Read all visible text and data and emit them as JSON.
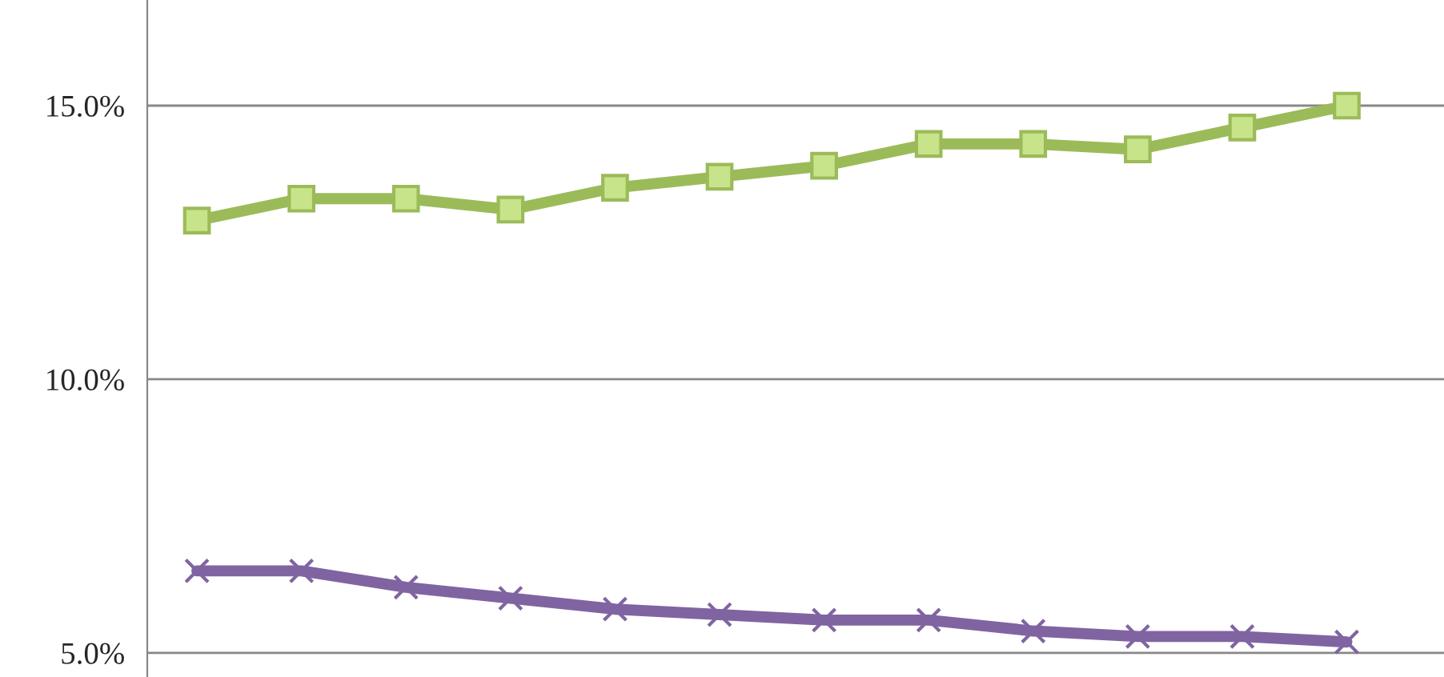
{
  "chart_data": {
    "type": "line",
    "categories": [
      null,
      null,
      null,
      null,
      null,
      null,
      null,
      null,
      null,
      null,
      null,
      null
    ],
    "series": [
      {
        "color": "#9bbb59",
        "marker": "square",
        "values": [
          12.9,
          13.3,
          13.3,
          13.1,
          13.5,
          13.7,
          13.9,
          14.3,
          14.3,
          14.2,
          14.6,
          15.0
        ]
      },
      {
        "color": "#8064a2",
        "marker": "cross",
        "values": [
          6.5,
          6.5,
          6.2,
          6.0,
          5.8,
          5.7,
          5.6,
          5.6,
          5.4,
          5.3,
          5.3,
          5.2
        ]
      }
    ],
    "ylim": [
      4.56,
      16.93
    ],
    "yticks": [
      {
        "value": 5,
        "label": "5.0%"
      },
      {
        "value": 10,
        "label": "10.0%"
      },
      {
        "value": 15,
        "label": "15.0%"
      }
    ],
    "grid": "y",
    "line_style": "solid"
  }
}
